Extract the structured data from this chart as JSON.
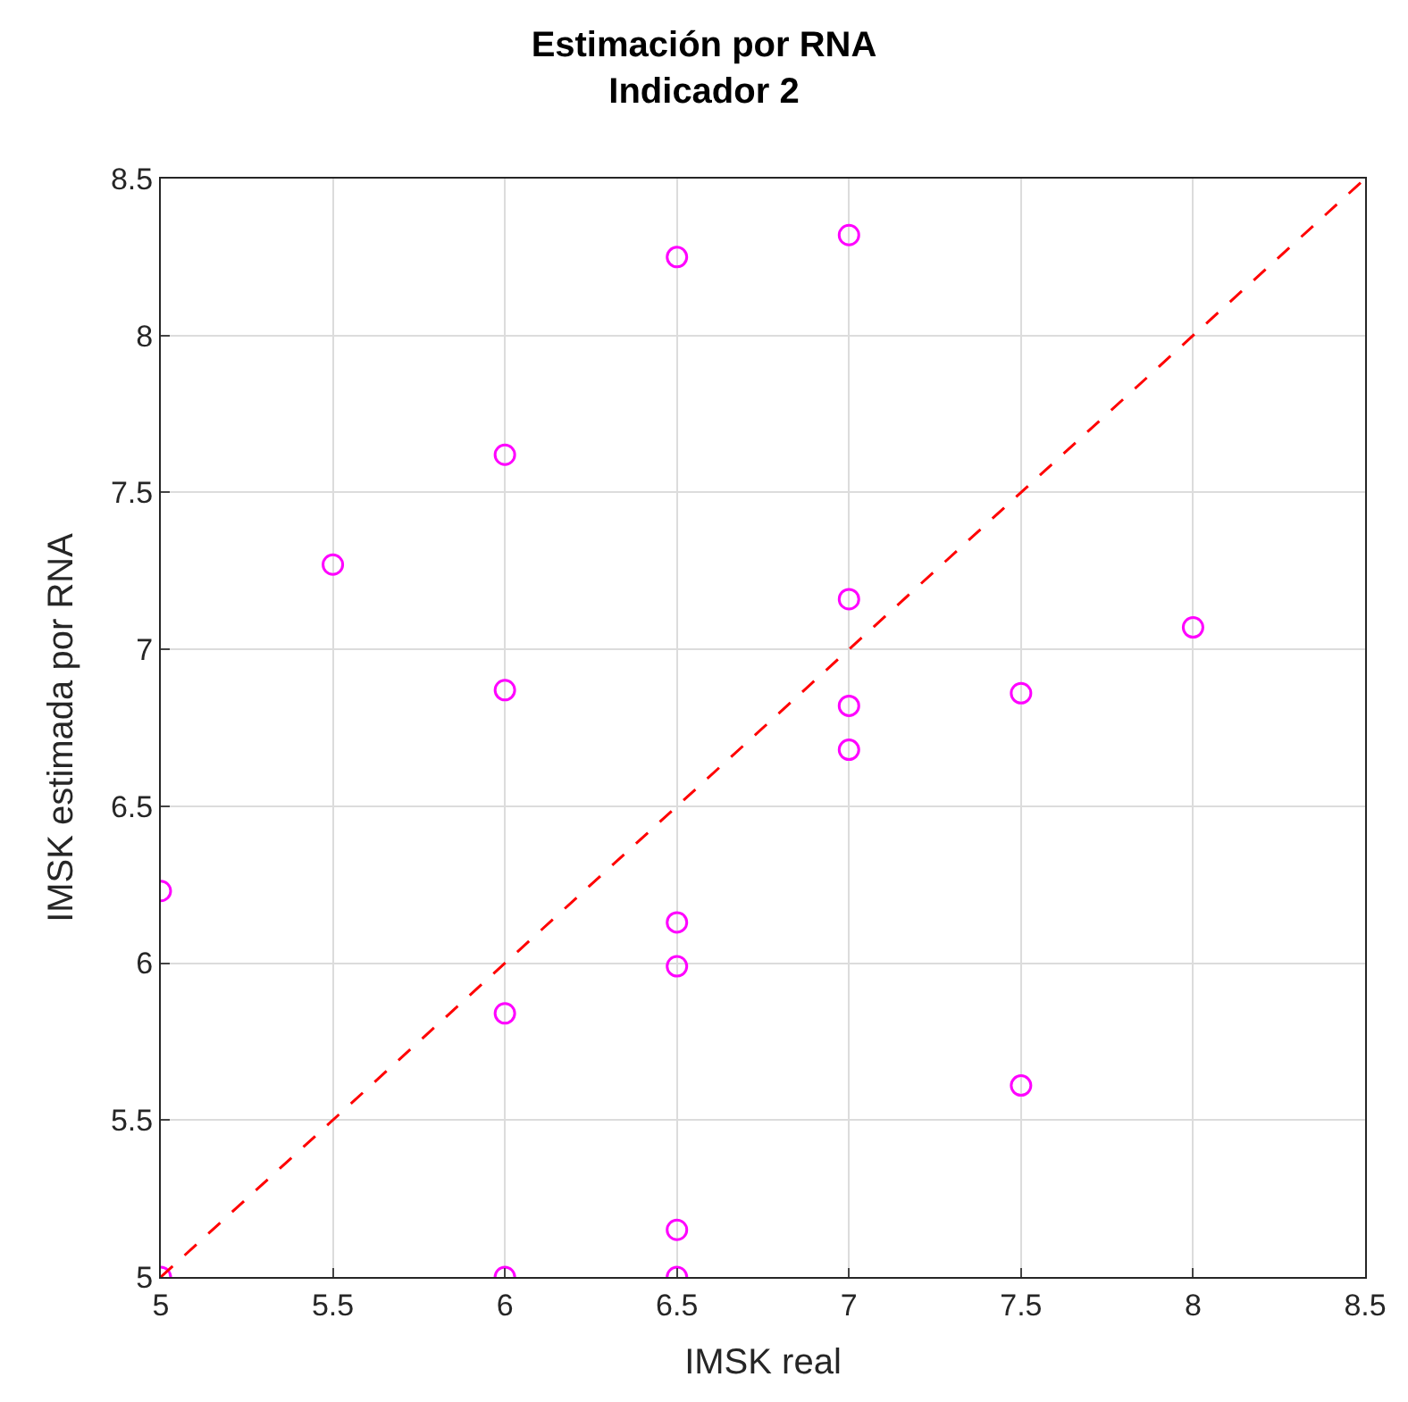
{
  "chart_data": {
    "type": "scatter",
    "title": "Estimación por RNA\nIndicador 2",
    "xlabel": "IMSK real",
    "ylabel": "IMSK estimada por RNA",
    "xlim": [
      5,
      8.5
    ],
    "xticks": [
      5,
      5.5,
      6,
      6.5,
      7,
      7.5,
      8,
      8.5
    ],
    "ylim": [
      5,
      8.5
    ],
    "yticks": [
      5,
      5.5,
      6,
      6.5,
      7,
      7.5,
      8,
      8.5
    ],
    "grid": true,
    "series": [
      {
        "color": "#ff00ff",
        "marker": "circle",
        "x": [
          5,
          5,
          5.5,
          6,
          6,
          6,
          6,
          6.5,
          6.5,
          6.5,
          6.5,
          6.5,
          7,
          7,
          7,
          7,
          7.5,
          7.5,
          8
        ],
        "values": [
          5.0,
          6.23,
          7.27,
          7.62,
          6.87,
          5.84,
          5.0,
          8.25,
          6.13,
          5.99,
          5.15,
          5.0,
          8.32,
          7.16,
          6.82,
          6.68,
          6.86,
          5.61,
          7.07
        ]
      },
      {
        "type": "line",
        "color": "#ff0000",
        "line_style": "dashed",
        "x": [
          5,
          8.5
        ],
        "values": [
          5,
          8.5
        ]
      }
    ]
  }
}
